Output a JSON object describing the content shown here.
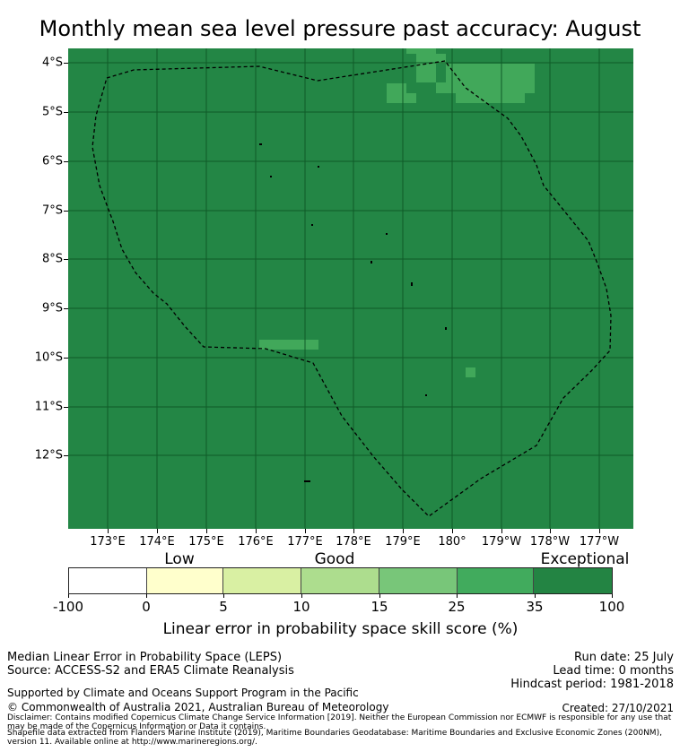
{
  "title": "Monthly mean sea level pressure past accuracy: August",
  "map": {
    "lat_labels": [
      "4°S",
      "5°S",
      "6°S",
      "7°S",
      "8°S",
      "9°S",
      "10°S",
      "11°S",
      "12°S"
    ],
    "lon_labels": [
      "173°E",
      "174°E",
      "175°E",
      "176°E",
      "177°E",
      "178°E",
      "179°E",
      "180°",
      "179°W",
      "178°W",
      "177°W"
    ],
    "colors": {
      "background": "#238645",
      "patch": "#41a85a",
      "grid": "#0f5a28",
      "boundary": "#000000"
    }
  },
  "colorbar": {
    "category_labels": [
      "Low",
      "Good",
      "Exceptional"
    ],
    "ticks": [
      "-100",
      "0",
      "5",
      "10",
      "15",
      "25",
      "35",
      "100"
    ],
    "segments": [
      {
        "color": "#ffffff"
      },
      {
        "color": "#ffffcc"
      },
      {
        "color": "#d9f0a3"
      },
      {
        "color": "#addd8e"
      },
      {
        "color": "#78c679"
      },
      {
        "color": "#41ab5d"
      },
      {
        "color": "#238443"
      }
    ],
    "title": "Linear error in probability space skill score (%)"
  },
  "footer": {
    "line1": "Median Linear Error in Probability Space (LEPS)",
    "line2": "Source: ACCESS-S2 and ERA5 Climate Reanalysis",
    "run_date": "Run date: 25 July",
    "lead_time": "Lead time: 0 months",
    "hindcast": "Hindcast period: 1981-2018",
    "supported": "Supported by Climate and Oceans Support Program in the Pacific",
    "copyright": "© Commonwealth of Australia 2021, Australian Bureau of Meteorology",
    "created": "Created: 27/10/2021",
    "disclaimer": "Disclaimer: Contains modified Copernicus Climate Change Service Information [2019]. Neither the European Commission nor ECMWF is responsible for any use that may be made of the Copernicus Information or Data it contains.",
    "shapefile": "Shapefile data extracted from Flanders Marine Institute (2019), Maritime Boundaries Geodatabase: Maritime Boundaries and Exclusive Economic Zones (200NM), version 11. Available online at http://www.marineregions.org/."
  }
}
